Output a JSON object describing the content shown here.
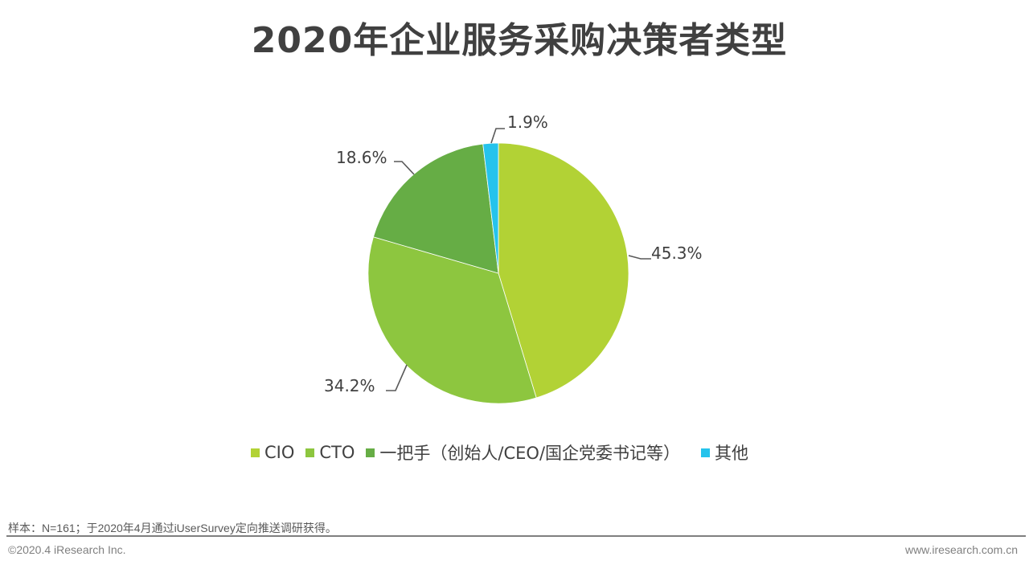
{
  "title": "2020年企业服务采购决策者类型",
  "chart_data": {
    "type": "pie",
    "title": "2020年企业服务采购决策者类型",
    "categories": [
      "CIO",
      "CTO",
      "一把手（创始人/CEO/国企党委书记等）",
      "其他"
    ],
    "values": [
      45.3,
      34.2,
      18.6,
      1.9
    ],
    "labels": [
      "45.3%",
      "34.2%",
      "18.6%",
      "1.9%"
    ],
    "colors": [
      "#B2D235",
      "#8DC63F",
      "#66AD45",
      "#25C3EC"
    ],
    "start_angle": "12 o'clock",
    "direction": "clockwise",
    "legend_position": "bottom"
  },
  "legend": [
    {
      "label": "CIO",
      "color": "#B2D235"
    },
    {
      "label": "CTO",
      "color": "#8DC63F"
    },
    {
      "label": "一把手（创始人/CEO/国企党委书记等）",
      "color": "#66AD45"
    },
    {
      "label": "其他",
      "color": "#25C3EC"
    }
  ],
  "footer": {
    "note": "样本：N=161；于2020年4月通过iUserSurvey定向推送调研获得。",
    "copyright": "©2020.4 iResearch Inc.",
    "website": "www.iresearch.com.cn"
  }
}
